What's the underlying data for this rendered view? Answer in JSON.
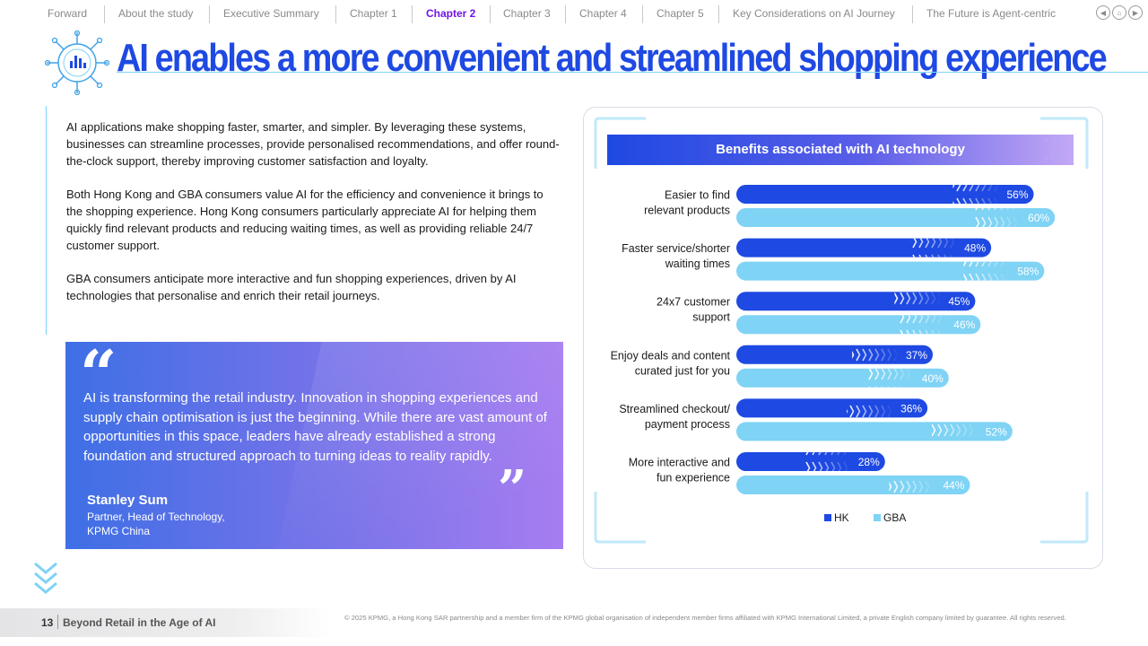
{
  "nav": {
    "items": [
      {
        "label": "Forward",
        "active": false
      },
      {
        "label": "About the study",
        "active": false
      },
      {
        "label": "Executive Summary",
        "active": false
      },
      {
        "label": "Chapter 1",
        "active": false
      },
      {
        "label": "Chapter 2",
        "active": true
      },
      {
        "label": "Chapter 3",
        "active": false
      },
      {
        "label": "Chapter 4",
        "active": false
      },
      {
        "label": "Chapter 5",
        "active": false
      },
      {
        "label": "Key Considerations on AI Journey",
        "active": false
      },
      {
        "label": "The Future is Agent-centric",
        "active": false
      }
    ],
    "controls": [
      {
        "icon": "back-icon",
        "glyph": "◀"
      },
      {
        "icon": "home-icon",
        "glyph": "⌂"
      },
      {
        "icon": "forward-icon",
        "glyph": "▶"
      }
    ]
  },
  "page": {
    "title": "AI enables a more convenient and streamlined shopping experience"
  },
  "body": {
    "paragraphs": [
      "AI applications make shopping faster, smarter, and simpler. By leveraging these systems, businesses can streamline processes, provide personalised recommendations, and offer round-the-clock support, thereby improving customer satisfaction and loyalty.",
      "Both Hong Kong and GBA consumers value AI for the efficiency and convenience it brings to the shopping experience. Hong Kong consumers particularly appreciate AI for helping them quickly find relevant products and reducing waiting times, as well as providing reliable 24/7 customer support.",
      "GBA consumers anticipate more interactive and fun shopping experiences, driven by AI technologies that personalise and enrich their retail journeys."
    ]
  },
  "quote": {
    "text": "AI is transforming the retail industry. Innovation in shopping experiences and supply chain optimisation is just the beginning. While there are vast amount of opportunities in this space, leaders have already established a strong foundation and structured approach to turning ideas to reality rapidly.",
    "name": "Stanley Sum",
    "role_line1": "Partner, Head of Technology,",
    "role_line2": "KPMG China"
  },
  "chart_data": {
    "type": "bar",
    "orientation": "horizontal",
    "title": "Benefits associated with AI technology",
    "categories": [
      [
        "Easier to find",
        "relevant products"
      ],
      [
        "Faster service/shorter",
        "waiting times"
      ],
      [
        "24x7 customer",
        "support"
      ],
      [
        "Enjoy deals and content",
        "curated just for you"
      ],
      [
        "Streamlined checkout/",
        "payment process"
      ],
      [
        "More interactive and",
        "fun experience"
      ]
    ],
    "series": [
      {
        "name": "HK",
        "values": [
          56,
          48,
          45,
          37,
          36,
          28
        ],
        "color": "#1e49e2"
      },
      {
        "name": "GBA",
        "values": [
          60,
          58,
          46,
          40,
          52,
          44
        ],
        "color": "#7fd3f5"
      }
    ],
    "value_suffix": "%",
    "legend": "bottom-center"
  },
  "footer": {
    "page_number": "13",
    "title": "Beyond Retail in the Age of AI",
    "copyright": "© 2025 KPMG, a Hong Kong SAR partnership and a member firm of the KPMG global organisation of independent member firms affiliated with KPMG International Limited, a private English company limited by guarantee. All rights reserved."
  },
  "colors": {
    "brand_blue": "#1e49e2",
    "light_blue": "#7fd3f5",
    "purple": "#7213ea"
  }
}
